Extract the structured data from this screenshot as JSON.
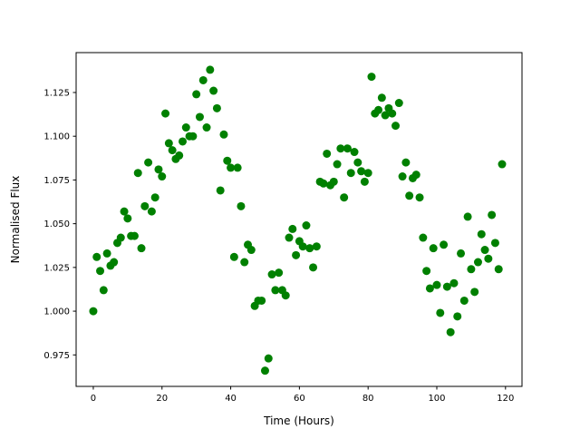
{
  "chart_data": {
    "type": "scatter",
    "title": "",
    "xlabel": "Time (Hours)",
    "ylabel": "Normalised Flux",
    "xlim": [
      -5,
      124.8
    ],
    "ylim": [
      0.957,
      1.1478
    ],
    "xticks": [
      0,
      20,
      40,
      60,
      80,
      100,
      120
    ],
    "xtick_labels": [
      "0",
      "20",
      "40",
      "60",
      "80",
      "100",
      "120"
    ],
    "yticks": [
      0.975,
      1.0,
      1.025,
      1.05,
      1.075,
      1.1,
      1.125
    ],
    "ytick_labels": [
      "0.975",
      "1.000",
      "1.025",
      "1.050",
      "1.075",
      "1.100",
      "1.125"
    ],
    "grid": false,
    "marker_color": "#008000",
    "x": [
      0,
      1,
      2,
      3,
      4,
      5,
      6,
      7,
      8,
      9,
      10,
      11,
      12,
      13,
      14,
      15,
      16,
      17,
      18,
      19,
      20,
      21,
      22,
      23,
      24,
      25,
      26,
      27,
      28,
      29,
      30,
      31,
      32,
      33,
      34,
      35,
      36,
      37,
      38,
      39,
      40,
      41,
      42,
      43,
      44,
      45,
      46,
      47,
      48,
      49,
      50,
      51,
      52,
      53,
      54,
      55,
      56,
      57,
      58,
      59,
      60,
      61,
      62,
      63,
      64,
      65,
      66,
      67,
      68,
      69,
      70,
      71,
      72,
      73,
      74,
      75,
      76,
      77,
      78,
      79,
      80,
      81,
      82,
      83,
      84,
      85,
      86,
      87,
      88,
      89,
      90,
      91,
      92,
      93,
      94,
      95,
      96,
      97,
      98,
      99,
      100,
      101,
      102,
      103,
      104,
      105,
      106,
      107,
      108,
      109,
      110,
      111,
      112,
      113,
      114,
      115,
      116,
      117,
      118,
      119
    ],
    "y": [
      1.0,
      1.031,
      1.023,
      1.012,
      1.033,
      1.026,
      1.028,
      1.039,
      1.042,
      1.057,
      1.053,
      1.043,
      1.043,
      1.079,
      1.036,
      1.06,
      1.085,
      1.057,
      1.065,
      1.081,
      1.077,
      1.113,
      1.096,
      1.092,
      1.087,
      1.089,
      1.097,
      1.105,
      1.1,
      1.1,
      1.124,
      1.111,
      1.132,
      1.105,
      1.138,
      1.126,
      1.116,
      1.069,
      1.101,
      1.086,
      1.082,
      1.031,
      1.082,
      1.06,
      1.028,
      1.038,
      1.035,
      1.003,
      1.006,
      1.006,
      0.966,
      0.973,
      1.021,
      1.012,
      1.022,
      1.012,
      1.009,
      1.042,
      1.047,
      1.032,
      1.04,
      1.037,
      1.049,
      1.036,
      1.025,
      1.037,
      1.074,
      1.073,
      1.09,
      1.072,
      1.074,
      1.084,
      1.093,
      1.065,
      1.093,
      1.079,
      1.091,
      1.085,
      1.08,
      1.074,
      1.079,
      1.134,
      1.113,
      1.115,
      1.122,
      1.112,
      1.116,
      1.113,
      1.106,
      1.119,
      1.077,
      1.085,
      1.066,
      1.076,
      1.078,
      1.065,
      1.042,
      1.023,
      1.013,
      1.036,
      1.015,
      0.999,
      1.038,
      1.014,
      0.988,
      1.016,
      0.997,
      1.033,
      1.006,
      1.054,
      1.024,
      1.011,
      1.028,
      1.044,
      1.035,
      1.03,
      1.055,
      1.039,
      1.024,
      1.084
    ]
  }
}
